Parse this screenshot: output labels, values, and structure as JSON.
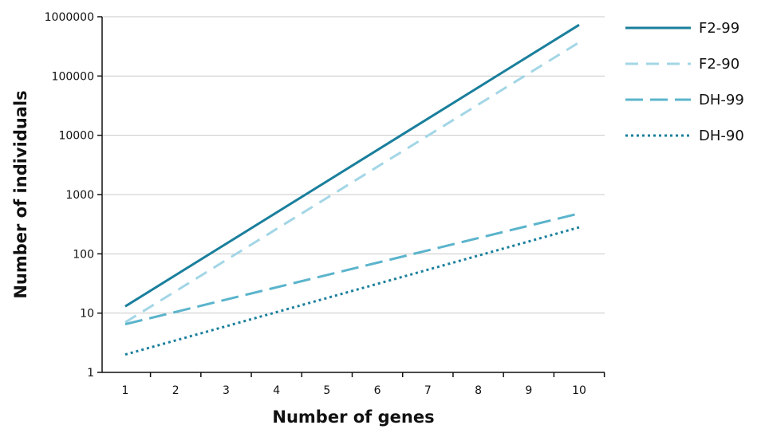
{
  "chart_data": {
    "type": "line",
    "title": "",
    "xlabel": "Number of genes",
    "ylabel": "Number of individuals",
    "x": [
      1,
      2,
      3,
      4,
      5,
      6,
      7,
      8,
      9,
      10
    ],
    "xlim": [
      1,
      10
    ],
    "ylim": [
      1,
      1000000
    ],
    "yscale": "log",
    "yticks": [
      1,
      10,
      100,
      1000,
      10000,
      100000,
      1000000
    ],
    "ytick_labels": [
      "1",
      "10",
      "100",
      "1000",
      "10000",
      "100000",
      "1000000"
    ],
    "xtick_labels": [
      "1",
      "2",
      "3",
      "4",
      "5",
      "6",
      "7",
      "8",
      "9",
      "10"
    ],
    "grid": "horizontal",
    "legend_position": "right",
    "series": [
      {
        "name": "F2-99",
        "color": "#1a7f9c",
        "style": "solid",
        "x": [
          1,
          10
        ],
        "values": [
          13,
          730000
        ]
      },
      {
        "name": "F2-90",
        "color": "#a3d6e6",
        "style": "dashed",
        "x": [
          1,
          10
        ],
        "values": [
          7,
          370000
        ]
      },
      {
        "name": "DH-99",
        "color": "#5bb4cc",
        "style": "long-dashed",
        "x": [
          1,
          10
        ],
        "values": [
          6.5,
          480
        ]
      },
      {
        "name": "DH-90",
        "color": "#1a7f9c",
        "style": "dotted",
        "x": [
          1,
          10
        ],
        "values": [
          2,
          280
        ]
      }
    ]
  }
}
